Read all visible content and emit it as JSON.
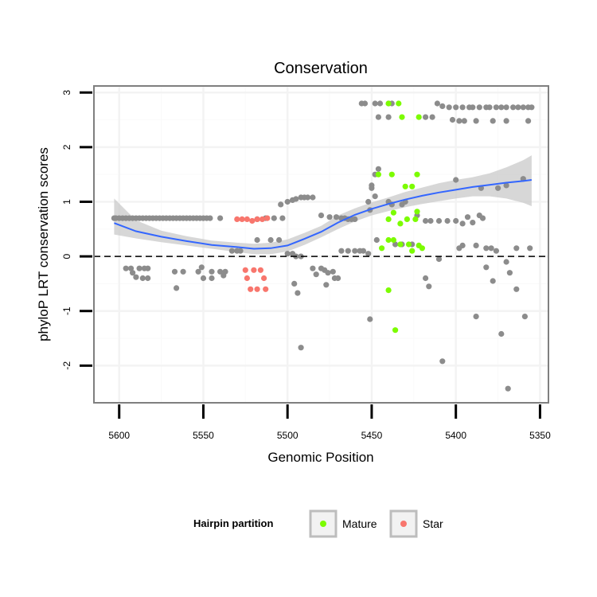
{
  "chart_data": {
    "type": "scatter",
    "title": "Conservation",
    "xlabel": "Genomic Position",
    "ylabel": "phyloP LRT conservation scores",
    "xlim": [
      5615,
      5345
    ],
    "x_reversed": true,
    "ylim": [
      -2.68,
      3.12
    ],
    "xticks": [
      5600,
      5550,
      5500,
      5450,
      5400,
      5350
    ],
    "yticks": [
      -2,
      -1,
      0,
      1,
      2,
      3
    ],
    "xtick_labels": [
      "5600",
      "5550",
      "5500",
      "5450",
      "5400",
      "5350"
    ],
    "ytick_labels": [
      "-2",
      "-1",
      "0",
      "1",
      "2",
      "3"
    ],
    "reference_line": {
      "y": 0,
      "style": "dashed"
    },
    "grid": true,
    "legend": {
      "title": "Hairpin partition",
      "position": "bottom",
      "entries": [
        {
          "label": "Mature",
          "color": "#7CFC00"
        },
        {
          "label": "Star",
          "color": "#F8766D"
        }
      ]
    },
    "colors": {
      "other": "#8C8C8C",
      "Mature": "#7CFC00",
      "Star": "#F8766D",
      "smooth": "#3366FF",
      "ribbon": "#C9C9C9"
    },
    "smooth": {
      "method": "loess",
      "x": [
        5603,
        5590,
        5575,
        5560,
        5545,
        5530,
        5520,
        5510,
        5500,
        5490,
        5480,
        5470,
        5460,
        5450,
        5440,
        5430,
        5420,
        5410,
        5400,
        5390,
        5380,
        5370,
        5360,
        5355
      ],
      "y": [
        0.61,
        0.46,
        0.36,
        0.28,
        0.21,
        0.17,
        0.14,
        0.15,
        0.2,
        0.32,
        0.45,
        0.62,
        0.76,
        0.87,
        0.96,
        1.04,
        1.11,
        1.17,
        1.22,
        1.27,
        1.31,
        1.35,
        1.38,
        1.4
      ],
      "lower": [
        0.4,
        0.33,
        0.26,
        0.2,
        0.14,
        0.08,
        0.04,
        0.04,
        0.09,
        0.21,
        0.35,
        0.5,
        0.64,
        0.75,
        0.83,
        0.9,
        0.96,
        1.01,
        1.06,
        1.1,
        1.1,
        1.06,
        0.98,
        0.92
      ],
      "upper": [
        1.06,
        0.66,
        0.47,
        0.37,
        0.29,
        0.25,
        0.23,
        0.25,
        0.31,
        0.43,
        0.56,
        0.75,
        0.88,
        0.99,
        1.08,
        1.18,
        1.26,
        1.34,
        1.4,
        1.45,
        1.52,
        1.63,
        1.76,
        1.85
      ]
    },
    "series": [
      {
        "name": "Other",
        "points": [
          [
            5603,
            0.7
          ],
          [
            5602,
            0.7
          ],
          [
            5600,
            0.7
          ],
          [
            5598,
            0.7
          ],
          [
            5596,
            0.7
          ],
          [
            5594,
            0.7
          ],
          [
            5592,
            0.7
          ],
          [
            5590,
            0.7
          ],
          [
            5588,
            0.7
          ],
          [
            5586,
            0.7
          ],
          [
            5584,
            0.7
          ],
          [
            5582,
            0.7
          ],
          [
            5580,
            0.7
          ],
          [
            5578,
            0.7
          ],
          [
            5576,
            0.7
          ],
          [
            5574,
            0.7
          ],
          [
            5572,
            0.7
          ],
          [
            5570,
            0.7
          ],
          [
            5568,
            0.7
          ],
          [
            5566,
            0.7
          ],
          [
            5564,
            0.7
          ],
          [
            5562,
            0.7
          ],
          [
            5560,
            0.7
          ],
          [
            5558,
            0.7
          ],
          [
            5556,
            0.7
          ],
          [
            5554,
            0.7
          ],
          [
            5552,
            0.7
          ],
          [
            5550,
            0.7
          ],
          [
            5548,
            0.7
          ],
          [
            5546,
            0.7
          ],
          [
            5540,
            0.7
          ],
          [
            5596,
            -0.22
          ],
          [
            5593,
            -0.22
          ],
          [
            5588,
            -0.22
          ],
          [
            5585,
            -0.22
          ],
          [
            5583,
            -0.22
          ],
          [
            5592,
            -0.3
          ],
          [
            5586,
            -0.4
          ],
          [
            5583,
            -0.4
          ],
          [
            5590,
            -0.38
          ],
          [
            5567,
            -0.28
          ],
          [
            5562,
            -0.28
          ],
          [
            5553,
            -0.28
          ],
          [
            5545,
            -0.28
          ],
          [
            5540,
            -0.28
          ],
          [
            5537,
            -0.28
          ],
          [
            5550,
            -0.4
          ],
          [
            5545,
            -0.4
          ],
          [
            5538,
            -0.35
          ],
          [
            5566,
            -0.58
          ],
          [
            5551,
            -0.2
          ],
          [
            5533,
            0.1
          ],
          [
            5530,
            0.1
          ],
          [
            5528,
            0.1
          ],
          [
            5518,
            0.3
          ],
          [
            5510,
            0.3
          ],
          [
            5505,
            0.3
          ],
          [
            5518,
            0.68
          ],
          [
            5513,
            0.7
          ],
          [
            5508,
            0.7
          ],
          [
            5503,
            0.7
          ],
          [
            5504,
            0.95
          ],
          [
            5500,
            1.0
          ],
          [
            5497,
            1.03
          ],
          [
            5495,
            1.05
          ],
          [
            5492,
            1.08
          ],
          [
            5490,
            1.08
          ],
          [
            5488,
            1.08
          ],
          [
            5485,
            1.08
          ],
          [
            5500,
            0.05
          ],
          [
            5497,
            0.05
          ],
          [
            5495,
            0.0
          ],
          [
            5492,
            0.0
          ],
          [
            5496,
            -0.5
          ],
          [
            5494,
            -0.67
          ],
          [
            5492,
            -1.67
          ],
          [
            5485,
            -0.22
          ],
          [
            5480,
            -0.22
          ],
          [
            5478,
            -0.25
          ],
          [
            5483,
            -0.33
          ],
          [
            5476,
            -0.3
          ],
          [
            5473,
            -0.28
          ],
          [
            5477,
            -0.52
          ],
          [
            5472,
            -0.4
          ],
          [
            5470,
            -0.4
          ],
          [
            5480,
            0.75
          ],
          [
            5475,
            0.72
          ],
          [
            5471,
            0.72
          ],
          [
            5468,
            0.7
          ],
          [
            5466,
            0.7
          ],
          [
            5464,
            0.68
          ],
          [
            5462,
            0.68
          ],
          [
            5460,
            0.68
          ],
          [
            5468,
            0.1
          ],
          [
            5464,
            0.1
          ],
          [
            5460,
            0.1
          ],
          [
            5457,
            0.1
          ],
          [
            5455,
            0.1
          ],
          [
            5452,
            0.05
          ],
          [
            5452,
            1.0
          ],
          [
            5450,
            1.25
          ],
          [
            5448,
            1.1
          ],
          [
            5451,
            0.85
          ],
          [
            5456,
            2.8
          ],
          [
            5454,
            2.8
          ],
          [
            5448,
            2.8
          ],
          [
            5445,
            2.8
          ],
          [
            5440,
            2.8
          ],
          [
            5438,
            2.8
          ],
          [
            5446,
            2.55
          ],
          [
            5440,
            2.55
          ],
          [
            5418,
            2.55
          ],
          [
            5414,
            2.55
          ],
          [
            5448,
            1.5
          ],
          [
            5446,
            1.6
          ],
          [
            5450,
            1.3
          ],
          [
            5447,
            0.3
          ],
          [
            5440,
            1.0
          ],
          [
            5438,
            0.95
          ],
          [
            5432,
            0.95
          ],
          [
            5430,
            1.0
          ],
          [
            5436,
            0.22
          ],
          [
            5432,
            0.22
          ],
          [
            5426,
            0.22
          ],
          [
            5423,
            0.75
          ],
          [
            5418,
            0.65
          ],
          [
            5415,
            0.65
          ],
          [
            5410,
            0.65
          ],
          [
            5405,
            0.65
          ],
          [
            5400,
            0.65
          ],
          [
            5418,
            -0.4
          ],
          [
            5416,
            -0.55
          ],
          [
            5410,
            -0.05
          ],
          [
            5408,
            -1.92
          ],
          [
            5451,
            -1.15
          ],
          [
            5411,
            2.8
          ],
          [
            5408,
            2.75
          ],
          [
            5404,
            2.73
          ],
          [
            5400,
            2.73
          ],
          [
            5396,
            2.73
          ],
          [
            5392,
            2.73
          ],
          [
            5390,
            2.73
          ],
          [
            5386,
            2.73
          ],
          [
            5382,
            2.73
          ],
          [
            5380,
            2.73
          ],
          [
            5376,
            2.73
          ],
          [
            5373,
            2.73
          ],
          [
            5370,
            2.73
          ],
          [
            5366,
            2.73
          ],
          [
            5363,
            2.73
          ],
          [
            5360,
            2.73
          ],
          [
            5357,
            2.73
          ],
          [
            5355,
            2.73
          ],
          [
            5402,
            2.5
          ],
          [
            5398,
            2.48
          ],
          [
            5395,
            2.48
          ],
          [
            5388,
            2.48
          ],
          [
            5378,
            2.48
          ],
          [
            5370,
            2.48
          ],
          [
            5357,
            2.48
          ],
          [
            5400,
            1.4
          ],
          [
            5385,
            1.25
          ],
          [
            5375,
            1.25
          ],
          [
            5370,
            1.3
          ],
          [
            5360,
            1.42
          ],
          [
            5393,
            0.72
          ],
          [
            5386,
            0.75
          ],
          [
            5384,
            0.7
          ],
          [
            5396,
            0.6
          ],
          [
            5390,
            0.62
          ],
          [
            5398,
            0.15
          ],
          [
            5396,
            0.2
          ],
          [
            5388,
            0.2
          ],
          [
            5382,
            0.15
          ],
          [
            5379,
            0.15
          ],
          [
            5376,
            0.1
          ],
          [
            5364,
            0.15
          ],
          [
            5356,
            0.15
          ],
          [
            5370,
            -0.1
          ],
          [
            5368,
            -0.3
          ],
          [
            5382,
            -0.2
          ],
          [
            5378,
            -0.45
          ],
          [
            5364,
            -0.6
          ],
          [
            5388,
            -1.1
          ],
          [
            5373,
            -1.42
          ],
          [
            5359,
            -1.1
          ],
          [
            5369,
            -2.42
          ]
        ]
      },
      {
        "name": "Mature",
        "points": [
          [
            5440,
            2.8
          ],
          [
            5434,
            2.8
          ],
          [
            5432,
            2.55
          ],
          [
            5422,
            2.55
          ],
          [
            5446,
            1.5
          ],
          [
            5438,
            1.5
          ],
          [
            5430,
            1.28
          ],
          [
            5426,
            1.28
          ],
          [
            5423,
            1.5
          ],
          [
            5440,
            0.68
          ],
          [
            5437,
            0.8
          ],
          [
            5433,
            0.6
          ],
          [
            5429,
            0.68
          ],
          [
            5424,
            0.68
          ],
          [
            5423,
            0.82
          ],
          [
            5444,
            0.15
          ],
          [
            5440,
            0.3
          ],
          [
            5437,
            0.3
          ],
          [
            5433,
            0.22
          ],
          [
            5428,
            0.22
          ],
          [
            5426,
            0.1
          ],
          [
            5420,
            0.15
          ],
          [
            5422,
            0.2
          ],
          [
            5440,
            -0.62
          ],
          [
            5436,
            -1.35
          ]
        ]
      },
      {
        "name": "Star",
        "points": [
          [
            5530,
            0.68
          ],
          [
            5527,
            0.68
          ],
          [
            5524,
            0.68
          ],
          [
            5521,
            0.65
          ],
          [
            5518,
            0.68
          ],
          [
            5515,
            0.68
          ],
          [
            5512,
            0.7
          ],
          [
            5525,
            -0.25
          ],
          [
            5520,
            -0.25
          ],
          [
            5516,
            -0.25
          ],
          [
            5524,
            -0.4
          ],
          [
            5514,
            -0.4
          ],
          [
            5522,
            -0.6
          ],
          [
            5518,
            -0.6
          ],
          [
            5513,
            -0.6
          ]
        ]
      }
    ]
  }
}
